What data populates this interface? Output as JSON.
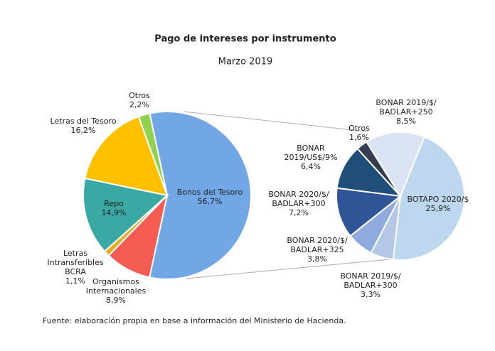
{
  "chart_data": [
    {
      "type": "pie",
      "title": "Pago de intereses por instrumento",
      "subtitle": "Marzo 2019",
      "categories": [
        "Bonos del Tesoro",
        "Organismos\nInternacionales",
        "Letras\nIntransferibles\nBCRA",
        "Repo",
        "Letras del Tesoro",
        "Otros"
      ],
      "values": [
        56.7,
        8.9,
        1.1,
        14.9,
        16.2,
        2.2
      ],
      "value_labels": [
        "56,7%",
        "8,9%",
        "1,1%",
        "14,9%",
        "16,2%",
        "2,2%"
      ],
      "colors": [
        "#72a7e6",
        "#f45b53",
        "#e6ad1f",
        "#3aa8a3",
        "#ffc000",
        "#92d050"
      ]
    },
    {
      "type": "pie",
      "categories": [
        "BOTAPO 2020/$",
        "BONAR 2019/$/\nBADLAR+300",
        "BONAR 2020/$/\nBADLAR+325",
        "BONAR 2020/$/\nBADLAR+300",
        "BONAR\n2019/US$/9%",
        "Otros",
        "BONAR 2019/$/\nBADLAR+250"
      ],
      "values": [
        25.9,
        3.3,
        3.8,
        7.2,
        6.4,
        1.6,
        8.5
      ],
      "value_labels": [
        "25,9%",
        "3,3%",
        "3,8%",
        "7,2%",
        "6,4%",
        "1,6%",
        "8,5%"
      ],
      "colors": [
        "#bdd7ee",
        "#b4c7e7",
        "#8faadc",
        "#2f5597",
        "#1f4e79",
        "#333f50",
        "#dae3f3"
      ],
      "note": "Fuente: elaboración propia en base a información del Ministerio de Hacienda."
    }
  ]
}
